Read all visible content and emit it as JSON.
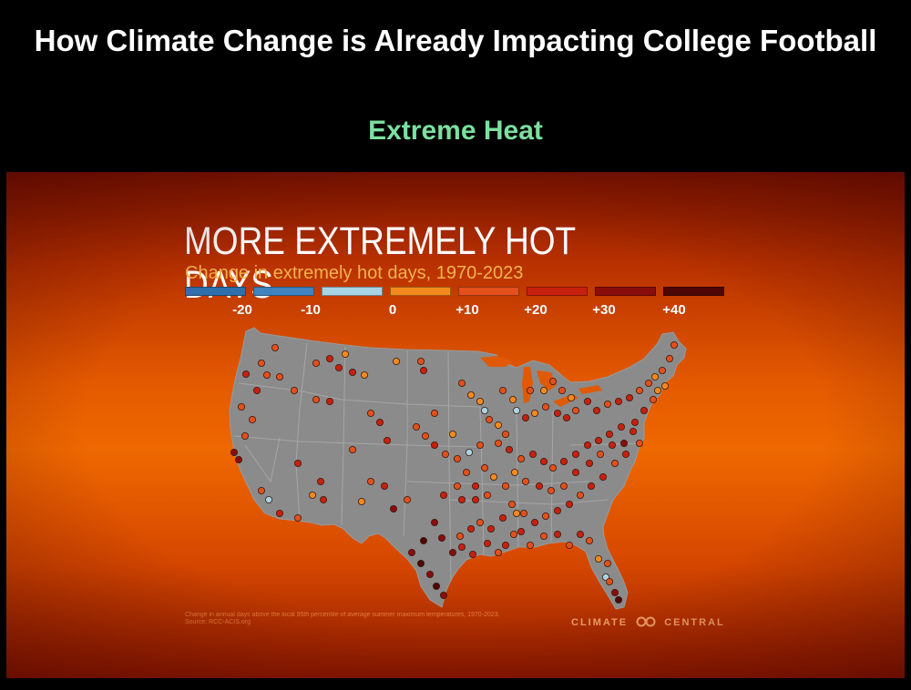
{
  "slide": {
    "title": "How Climate Change is Already Impacting College Football",
    "subtitle": "Extreme Heat"
  },
  "graphic": {
    "headline": "MORE EXTREMELY HOT DAYS",
    "subheadline": "Change in extremely hot days, 1970-2023",
    "legend": {
      "labels": [
        "-20",
        "-10",
        "0",
        "+10",
        "+20",
        "+30",
        "+40"
      ],
      "colors": [
        "#2f6fad",
        "#3f84c0",
        "#a9d4e6",
        "#f28a1e",
        "#e3501c",
        "#c8200f",
        "#8a0d0d",
        "#4e0606"
      ]
    },
    "footnote_line1": "Change in annual days above the local 95th percentile of average summer maximum temperatures, 1970-2023.",
    "footnote_line2": "Source: RCC-ACIS.org",
    "brand_left": "CLIMATE",
    "brand_right": "CENTRAL",
    "logo_icon": "infinity-icon"
  },
  "map_colors": {
    "land": "#8b8b8b",
    "state_lines": "#a6a6a6",
    "lakes": "#e05a06"
  }
}
